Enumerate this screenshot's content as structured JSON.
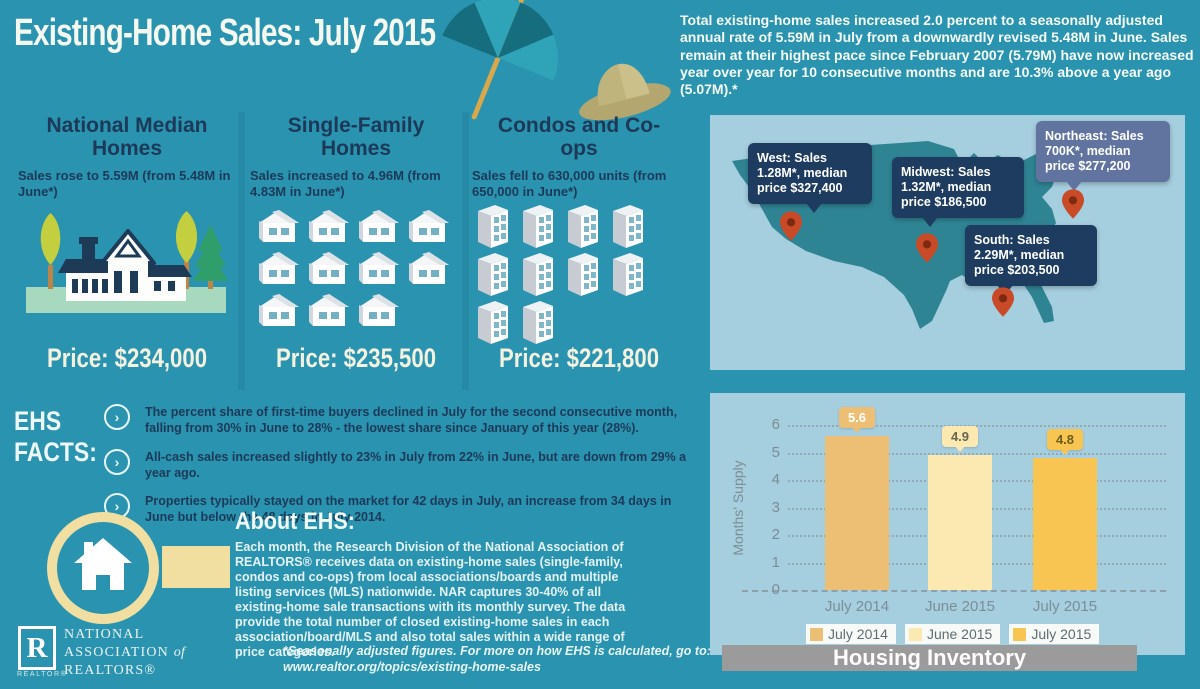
{
  "title": "Existing-Home Sales: July 2015",
  "intro": "Total existing-home sales increased 2.0 percent to a seasonally adjusted annual rate of 5.59M in July from a downwardly revised 5.48M in June. Sales remain at their highest pace since February 2007 (5.79M) have now increased year over year for 10 consecutive months and are 10.3% above a year ago (5.07M).*",
  "columns": [
    {
      "heading": "National Median Homes",
      "subtext": "Sales rose to 5.59M (from 5.48M in June*)",
      "price": "Price: $234,000",
      "icon": "house-scene"
    },
    {
      "heading": "Single-Family Homes",
      "subtext": "Sales increased to 4.96M (from 4.83M in June*)",
      "price": "Price: $235,500",
      "icon": "house",
      "icon_rows": [
        4,
        4,
        3
      ]
    },
    {
      "heading": "Condos and Co-ops",
      "subtext": "Sales fell to 630,000 units (from 650,000 in June*)",
      "price": "Price: $221,800",
      "icon": "condo-tower",
      "icon_rows": [
        4,
        4,
        2
      ]
    }
  ],
  "map": {
    "regions": [
      {
        "name": "West",
        "text": "West: Sales 1.28M*, median price $327,400"
      },
      {
        "name": "Midwest",
        "text": "Midwest: Sales 1.32M*, median price $186,500"
      },
      {
        "name": "Northeast",
        "text": "Northeast: Sales 700K*, median price $277,200"
      },
      {
        "name": "South",
        "text": "South: Sales 2.29M*, median price $203,500"
      }
    ]
  },
  "facts": {
    "label": "EHS FACTS:",
    "items": [
      "The percent share of first-time buyers declined in July for the second consecutive month, falling from 30% in June to 28% - the lowest share since January of this year (28%).",
      "All-cash sales increased slightly to 23% in July from 22% in June, but are down from 29% a year ago.",
      "Properties typically stayed on the market for 42 days in July, an increase from 34 days in June but below the 48 days in July 2014."
    ]
  },
  "about": {
    "heading": "About EHS:",
    "body": "Each month, the Research Division of the National Association of REALTORS® receives data on existing-home sales (single-family, condos and co-ops) from local associations/boards and multiple listing services (MLS) nationwide. NAR captures 30-40% of all existing-home sale transactions with its monthly survey. The data provide the total number of closed existing-home sales in each association/board/MLS and also total sales within a wide range of price categories.",
    "footnote": "*Seasonally adjusted figures. For more on how EHS is calculated, go to:",
    "footnote_url": "www.realtor.org/topics/existing-home-sales"
  },
  "logo": {
    "r_letter": "R",
    "r_caption": "REALTOR®",
    "line1": "NATIONAL",
    "line2a": "ASSOCIATION",
    "line2b": "of",
    "line3": "REALTORS®"
  },
  "icons": {
    "fact_bullet": "›"
  },
  "chart_data": {
    "type": "bar",
    "title": "Housing Inventory",
    "ylabel": "Months' Supply",
    "categories": [
      "July 2014",
      "June 2015",
      "July 2015"
    ],
    "values": [
      5.6,
      4.9,
      4.8
    ],
    "ylim": [
      0,
      6
    ],
    "yticks": [
      0,
      1,
      2,
      3,
      4,
      5,
      6
    ],
    "grid": true,
    "legend": [
      "July 2014",
      "June 2015",
      "July 2015"
    ],
    "legend_position": "bottom",
    "bar_colors": [
      "#edbf75",
      "#fbe9b1",
      "#f9c552"
    ],
    "value_label_styles": [
      {
        "bg": "#edbf75",
        "fg": "#ffffff"
      },
      {
        "bg": "#fbe9b1",
        "fg": "#66664f"
      },
      {
        "bg": "#f9c552",
        "fg": "#6b5c1f"
      }
    ]
  },
  "colors": {
    "background": "#2a93b0",
    "panel": "#a5cede",
    "navy_text": "#1c3a58",
    "callout": "#1e3c5f",
    "callout_light": "#6174a0",
    "pin": "#c94a27",
    "map_fill": "#2f8494",
    "cream": "#f1dea1",
    "chart_title_bar": "#9b9b9b"
  }
}
